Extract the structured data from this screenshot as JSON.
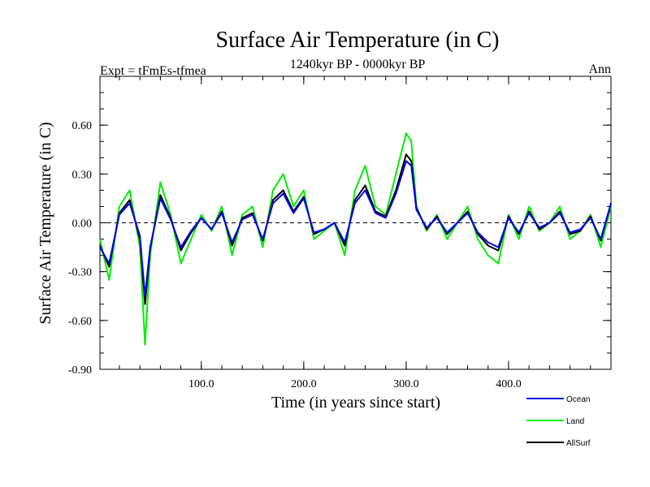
{
  "chart_data": {
    "type": "line",
    "title": "Surface Air Temperature (in C)",
    "subtitle": "1240kyr BP - 0000kyr BP",
    "left_note": "Expt = tFmEs-tfmea",
    "right_note": "Ann",
    "xlabel": "Time (in years since start)",
    "ylabel": "Surface Air Temperature (in C)",
    "xlim": [
      1,
      500
    ],
    "ylim": [
      -0.9,
      0.9
    ],
    "x_ticks": [
      100,
      200,
      300,
      400
    ],
    "x_tick_labels": [
      "100.0",
      "200.0",
      "300.0",
      "400.0"
    ],
    "y_ticks": [
      -0.9,
      -0.6,
      -0.3,
      0.0,
      0.3,
      0.6
    ],
    "y_tick_labels": [
      "-0.90",
      "-0.60",
      "-0.30",
      "0.00",
      "0.30",
      "0.60"
    ],
    "reference_line": 0.0,
    "x": [
      1,
      10,
      20,
      30,
      40,
      45,
      50,
      60,
      70,
      80,
      90,
      100,
      110,
      120,
      130,
      140,
      150,
      160,
      170,
      180,
      190,
      200,
      210,
      220,
      230,
      240,
      250,
      260,
      270,
      280,
      290,
      300,
      305,
      310,
      320,
      330,
      340,
      350,
      360,
      370,
      380,
      390,
      400,
      410,
      420,
      430,
      440,
      450,
      460,
      470,
      480,
      490,
      500
    ],
    "series": [
      {
        "name": "Land",
        "color": "#00ee00",
        "values": [
          -0.1,
          -0.35,
          0.1,
          0.2,
          -0.15,
          -0.75,
          -0.2,
          0.25,
          0.05,
          -0.25,
          -0.1,
          0.05,
          -0.05,
          0.1,
          -0.2,
          0.05,
          0.1,
          -0.15,
          0.2,
          0.3,
          0.1,
          0.2,
          -0.1,
          -0.05,
          0.0,
          -0.2,
          0.2,
          0.35,
          0.1,
          0.05,
          0.3,
          0.55,
          0.5,
          0.1,
          -0.05,
          0.05,
          -0.1,
          0.0,
          0.1,
          -0.1,
          -0.2,
          -0.25,
          0.05,
          -0.1,
          0.1,
          -0.05,
          0.0,
          0.1,
          -0.1,
          -0.05,
          0.05,
          -0.15,
          0.1
        ]
      },
      {
        "name": "Ocean",
        "color": "#0000ee",
        "values": [
          -0.15,
          -0.25,
          0.05,
          0.12,
          -0.08,
          -0.45,
          -0.15,
          0.15,
          0.02,
          -0.15,
          -0.05,
          0.03,
          -0.04,
          0.06,
          -0.12,
          0.02,
          0.05,
          -0.1,
          0.12,
          0.18,
          0.06,
          0.15,
          -0.06,
          -0.04,
          0.0,
          -0.12,
          0.12,
          0.2,
          0.06,
          0.03,
          0.18,
          0.38,
          0.35,
          0.08,
          -0.03,
          0.03,
          -0.06,
          0.0,
          0.06,
          -0.06,
          -0.12,
          -0.15,
          0.03,
          -0.06,
          0.06,
          -0.03,
          0.0,
          0.06,
          -0.06,
          -0.04,
          0.03,
          -0.1,
          0.12
        ]
      },
      {
        "name": "AllSurf",
        "color": "#000000",
        "values": [
          -0.14,
          -0.27,
          0.06,
          0.14,
          -0.1,
          -0.5,
          -0.16,
          0.17,
          0.03,
          -0.17,
          -0.06,
          0.03,
          -0.04,
          0.07,
          -0.14,
          0.03,
          0.06,
          -0.11,
          0.14,
          0.2,
          0.07,
          0.16,
          -0.07,
          -0.04,
          0.0,
          -0.14,
          0.14,
          0.23,
          0.07,
          0.04,
          0.2,
          0.42,
          0.38,
          0.09,
          -0.04,
          0.04,
          -0.07,
          0.0,
          0.07,
          -0.07,
          -0.14,
          -0.17,
          0.04,
          -0.07,
          0.07,
          -0.04,
          0.0,
          0.07,
          -0.07,
          -0.05,
          0.04,
          -0.11,
          0.12
        ]
      }
    ],
    "legend_order": [
      "Ocean",
      "Land",
      "AllSurf"
    ],
    "legend_position": "bottom-right"
  }
}
